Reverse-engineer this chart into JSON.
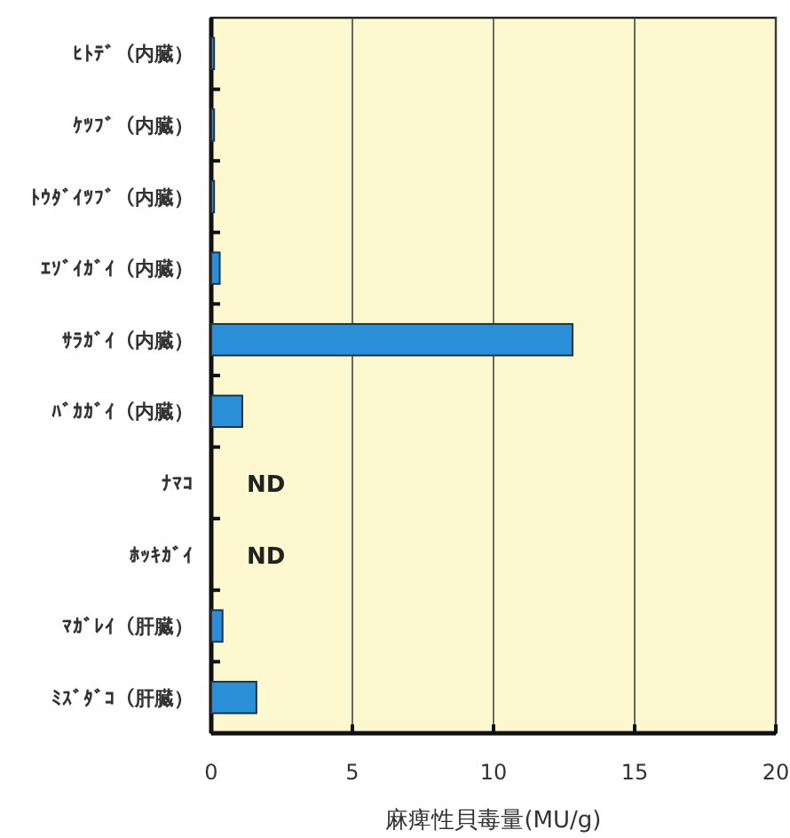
{
  "chart_data": {
    "type": "bar",
    "orientation": "horizontal",
    "xlabel": "麻痺性貝毒量(MU/g)",
    "categories": [
      "ﾋﾄﾃﾞ（内臓）",
      "ｹﾂﾌﾞ（内臓）",
      "ﾄｳﾀﾞｲﾂﾌﾞ（内臓）",
      "ｴｿﾞｲｶﾞｲ（内臓）",
      "ｻﾗｶﾞｲ（内臓）",
      "ﾊﾞｶｶﾞｲ（内臓）",
      "ﾅﾏｺ",
      "ﾎｯｷｶﾞｲ",
      "ﾏｶﾞﾚｲ（肝臓）",
      "ﾐｽﾞﾀﾞｺ（肝臓）"
    ],
    "values": [
      0.1,
      0.1,
      0.1,
      0.3,
      12.8,
      1.1,
      null,
      null,
      0.4,
      1.6
    ],
    "value_labels": [
      null,
      null,
      null,
      null,
      null,
      null,
      "ND",
      "ND",
      null,
      null
    ],
    "color": "#2a8fd6",
    "xlim": [
      0,
      20
    ],
    "xticks": [
      0,
      5,
      10,
      15,
      20
    ],
    "grid": "x"
  }
}
